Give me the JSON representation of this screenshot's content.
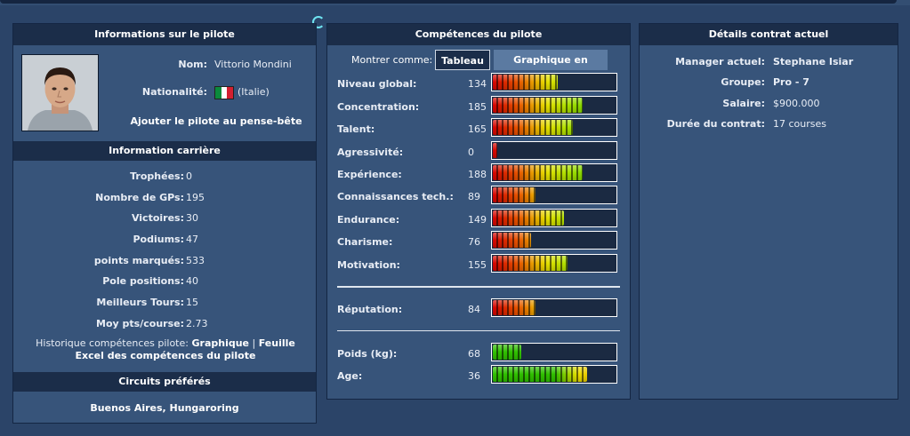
{
  "driver_panel": {
    "title": "Informations sur le pilote",
    "name_label": "Nom:",
    "name": "Vittorio Mondini",
    "nationality_label": "Nationalité:",
    "nationality": "(Italie)",
    "add_watchlist": "Ajouter le pilote au pense-bête",
    "career_title": "Information carrière",
    "career": [
      {
        "label": "Trophées:",
        "value": "0"
      },
      {
        "label": "Nombre de GPs:",
        "value": "195"
      },
      {
        "label": "Victoires:",
        "value": "30"
      },
      {
        "label": "Podiums:",
        "value": "47"
      },
      {
        "label": "points marqués:",
        "value": "533"
      },
      {
        "label": "Pole positions:",
        "value": "40"
      },
      {
        "label": "Meilleurs Tours:",
        "value": "15"
      },
      {
        "label": "Moy pts/course:",
        "value": "2.73"
      }
    ],
    "history_label": "Historique compétences pilote:",
    "history_link1": "Graphique",
    "history_sep": "|",
    "history_link2": "Feuille Excel des compétences du pilote",
    "circuits_title": "Circuits préférés",
    "circuits": "Buenos Aires, Hungaroring"
  },
  "skills_panel": {
    "title": "Compétences du pilote",
    "show_as": "Montrer comme:",
    "btn_table": "Tableau",
    "btn_radar": "Graphique en radar",
    "skills": [
      {
        "label": "Niveau global:",
        "value": "134",
        "level": 0.53
      },
      {
        "label": "Concentration:",
        "value": "185",
        "level": 0.73
      },
      {
        "label": "Talent:",
        "value": "165",
        "level": 0.65
      },
      {
        "label": "Agressivité:",
        "value": "0",
        "level": 0.03
      },
      {
        "label": "Expérience:",
        "value": "188",
        "level": 0.73
      },
      {
        "label": "Connaissances tech.:",
        "value": "89",
        "level": 0.35
      },
      {
        "label": "Endurance:",
        "value": "149",
        "level": 0.58
      },
      {
        "label": "Charisme:",
        "value": "76",
        "level": 0.31
      },
      {
        "label": "Motivation:",
        "value": "155",
        "level": 0.61
      }
    ],
    "reputation": {
      "label": "Réputation:",
      "value": "84",
      "level": 0.35
    },
    "physical": [
      {
        "label": "Poids (kg):",
        "value": "68",
        "level": 0.23
      },
      {
        "label": "Age:",
        "value": "36",
        "level": 0.77
      }
    ]
  },
  "contract_panel": {
    "title": "Détails contrat actuel",
    "rows": [
      {
        "label": "Manager actuel:",
        "value": "Stephane Isiar",
        "bold": true
      },
      {
        "label": "Groupe:",
        "value": "Pro - 7",
        "bold": true
      },
      {
        "label": "Salaire:",
        "value": "$900.000",
        "bold": false
      },
      {
        "label": "Durée du contrat:",
        "value": "17 courses",
        "bold": false
      }
    ]
  },
  "colors": {
    "background": "#2b4468",
    "panel": "#37547a",
    "header": "#1b2d49",
    "bar_low": "#d40000",
    "bar_mid": "#e8e000",
    "bar_high": "#2fbf00"
  }
}
